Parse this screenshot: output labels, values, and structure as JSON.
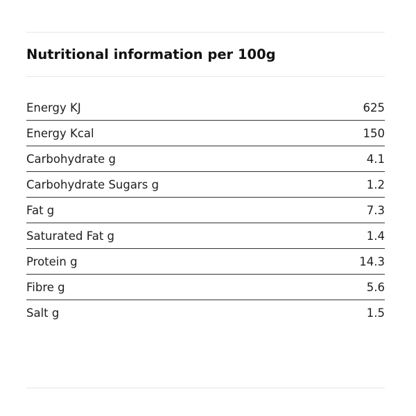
{
  "heading": "Nutritional information per 100g",
  "rows": [
    {
      "label": "Energy KJ",
      "value": "625"
    },
    {
      "label": "Energy Kcal",
      "value": "150"
    },
    {
      "label": "Carbohydrate g",
      "value": "4.1"
    },
    {
      "label": "Carbohydrate Sugars g",
      "value": "1.2"
    },
    {
      "label": "Fat g",
      "value": "7.3"
    },
    {
      "label": "Saturated Fat g",
      "value": "1.4"
    },
    {
      "label": "Protein g",
      "value": "14.3"
    },
    {
      "label": "Fibre g",
      "value": "5.6"
    },
    {
      "label": "Salt g",
      "value": "1.5"
    }
  ],
  "colors": {
    "text": "#1e1e1e",
    "row_divider": "#333333",
    "section_divider": "#e6e6e6"
  }
}
